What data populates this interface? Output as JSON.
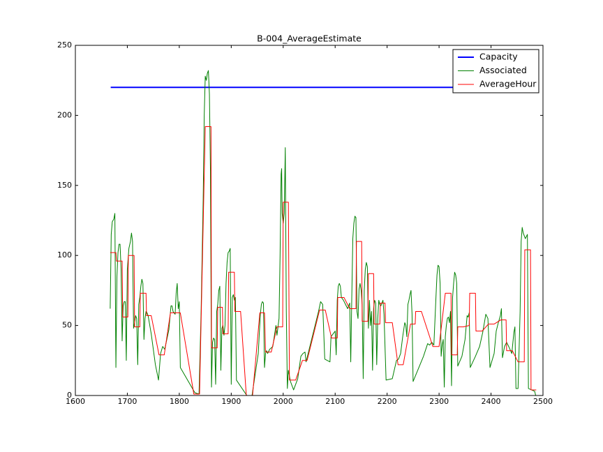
{
  "chart_data": {
    "type": "line",
    "title": "B-004_AverageEstimate",
    "xlim": [
      1600,
      2500
    ],
    "xticks": [
      1600,
      1700,
      1800,
      1900,
      2000,
      2100,
      2200,
      2300,
      2400,
      2500
    ],
    "ylim": [
      0,
      250
    ],
    "yticks": [
      0,
      50,
      100,
      150,
      200,
      250
    ],
    "grid": false,
    "legend": "upper right",
    "series": [
      {
        "name": "Capacity",
        "color": "#0000ff",
        "x": [
          1668,
          2487
        ],
        "values": [
          220,
          220
        ]
      },
      {
        "name": "Associated",
        "color": "#008000",
        "x": [
          1667,
          1669,
          1671,
          1674,
          1676,
          1678,
          1680,
          1682,
          1684,
          1686,
          1688,
          1690,
          1692,
          1694,
          1696,
          1698,
          1700,
          1703,
          1706,
          1708,
          1710,
          1712,
          1714,
          1716,
          1718,
          1720,
          1722,
          1724,
          1726,
          1728,
          1730,
          1732,
          1734,
          1736,
          1738,
          1740,
          1746,
          1754,
          1760,
          1764,
          1768,
          1772,
          1780,
          1784,
          1786,
          1788,
          1792,
          1794,
          1796,
          1798,
          1800,
          1802,
          1830,
          1838,
          1842,
          1846,
          1848,
          1850,
          1852,
          1854,
          1856,
          1858,
          1860,
          1862,
          1864,
          1866,
          1868,
          1870,
          1872,
          1874,
          1876,
          1878,
          1880,
          1882,
          1884,
          1886,
          1888,
          1890,
          1892,
          1894,
          1896,
          1898,
          1900,
          1902,
          1904,
          1906,
          1908,
          1910,
          1930,
          1940,
          1952,
          1956,
          1958,
          1960,
          1962,
          1964,
          1966,
          1968,
          1970,
          1974,
          1980,
          1986,
          1988,
          1992,
          1994,
          1996,
          1997,
          1998,
          2000,
          2002,
          2004,
          2006,
          2008,
          2010,
          2014,
          2020,
          2028,
          2034,
          2038,
          2042,
          2044,
          2068,
          2072,
          2076,
          2080,
          2090,
          2092,
          2096,
          2100,
          2102,
          2104,
          2106,
          2108,
          2110,
          2112,
          2116,
          2120,
          2124,
          2128,
          2130,
          2132,
          2134,
          2136,
          2138,
          2140,
          2142,
          2144,
          2146,
          2148,
          2150,
          2152,
          2154,
          2156,
          2158,
          2160,
          2162,
          2164,
          2166,
          2168,
          2170,
          2172,
          2174,
          2176,
          2178,
          2180,
          2182,
          2184,
          2186,
          2188,
          2192,
          2194,
          2198,
          2210,
          2218,
          2222,
          2226,
          2230,
          2234,
          2236,
          2238,
          2240,
          2242,
          2244,
          2246,
          2248,
          2250,
          2270,
          2278,
          2282,
          2286,
          2290,
          2294,
          2296,
          2298,
          2300,
          2302,
          2304,
          2306,
          2308,
          2310,
          2312,
          2314,
          2316,
          2318,
          2320,
          2322,
          2324,
          2326,
          2328,
          2330,
          2332,
          2334,
          2336,
          2344,
          2350,
          2354,
          2356,
          2358,
          2360,
          2370,
          2378,
          2384,
          2390,
          2394,
          2398,
          2406,
          2410,
          2414,
          2418,
          2420,
          2422,
          2426,
          2430,
          2434,
          2440,
          2444,
          2446,
          2448,
          2452,
          2456,
          2458,
          2460,
          2462,
          2466,
          2470,
          2472,
          2478,
          2484,
          2486
        ],
        "values": [
          62,
          115,
          124,
          126,
          130,
          20,
          85,
          102,
          108,
          108,
          90,
          39,
          64,
          67,
          67,
          25,
          90,
          105,
          110,
          116,
          110,
          48,
          52,
          57,
          55,
          22,
          65,
          70,
          78,
          83,
          80,
          40,
          55,
          60,
          59,
          57,
          44,
          22,
          11,
          30,
          35,
          33,
          47,
          64,
          64,
          60,
          58,
          73,
          80,
          62,
          67,
          20,
          2,
          1,
          60,
          140,
          200,
          228,
          225,
          230,
          232,
          215,
          160,
          6,
          38,
          41,
          40,
          8,
          60,
          65,
          75,
          78,
          18,
          48,
          50,
          43,
          50,
          80,
          95,
          102,
          103,
          105,
          8,
          70,
          72,
          68,
          70,
          11,
          0,
          0,
          30,
          58,
          65,
          67,
          66,
          20,
          30,
          32,
          30,
          33,
          35,
          50,
          43,
          55,
          100,
          158,
          162,
          130,
          123,
          130,
          177,
          60,
          5,
          18,
          10,
          4,
          12,
          28,
          30,
          31,
          24,
          60,
          67,
          65,
          26,
          24,
          42,
          44,
          46,
          29,
          68,
          78,
          80,
          78,
          70,
          68,
          65,
          62,
          66,
          24,
          70,
          112,
          123,
          128,
          127,
          60,
          55,
          76,
          80,
          75,
          65,
          12,
          75,
          90,
          95,
          92,
          48,
          68,
          50,
          60,
          18,
          62,
          68,
          66,
          22,
          55,
          68,
          65,
          64,
          68,
          58,
          11,
          12,
          25,
          26,
          30,
          42,
          52,
          50,
          42,
          65,
          68,
          72,
          75,
          58,
          10,
          28,
          37,
          36,
          38,
          36,
          70,
          86,
          93,
          92,
          80,
          28,
          36,
          40,
          6,
          42,
          50,
          55,
          56,
          52,
          60,
          7,
          70,
          80,
          88,
          86,
          80,
          21,
          28,
          40,
          57,
          56,
          59,
          20,
          28,
          35,
          45,
          58,
          55,
          20,
          30,
          46,
          52,
          57,
          62,
          27,
          35,
          38,
          35,
          30,
          45,
          49,
          5,
          5,
          60,
          110,
          120,
          116,
          112,
          115,
          5,
          4,
          3,
          0
        ]
      },
      {
        "name": "AverageHour",
        "color": "#ff0000",
        "x": [
          1667,
          1678,
          1679,
          1690,
          1691,
          1701,
          1702,
          1713,
          1714,
          1724,
          1725,
          1736,
          1737,
          1746,
          1761,
          1771,
          1783,
          1802,
          1828,
          1839,
          1850,
          1861,
          1862,
          1873,
          1874,
          1883,
          1884,
          1894,
          1895,
          1906,
          1907,
          1918,
          1929,
          1941,
          1955,
          1964,
          1966,
          1977,
          1988,
          1999,
          2000,
          2010,
          2012,
          2024,
          2037,
          2046,
          2070,
          2081,
          2093,
          2104,
          2105,
          2117,
          2128,
          2140,
          2141,
          2151,
          2152,
          2163,
          2164,
          2174,
          2175,
          2186,
          2187,
          2196,
          2197,
          2210,
          2221,
          2231,
          2245,
          2254,
          2255,
          2266,
          2288,
          2300,
          2312,
          2323,
          2324,
          2335,
          2336,
          2347,
          2358,
          2359,
          2370,
          2371,
          2383,
          2395,
          2406,
          2419,
          2429,
          2430,
          2441,
          2452,
          2464,
          2465,
          2476,
          2477,
          2487
        ],
        "values": [
          102,
          102,
          96,
          96,
          56,
          56,
          100,
          100,
          49,
          49,
          73,
          73,
          57,
          57,
          29,
          29,
          59,
          59,
          1,
          1,
          192,
          192,
          34,
          34,
          63,
          63,
          44,
          44,
          88,
          88,
          60,
          60,
          0,
          0,
          59,
          59,
          31,
          31,
          49,
          49,
          138,
          138,
          11,
          11,
          25,
          25,
          61,
          61,
          41,
          41,
          70,
          70,
          62,
          62,
          110,
          110,
          53,
          53,
          87,
          87,
          51,
          51,
          66,
          66,
          52,
          52,
          22,
          22,
          51,
          51,
          60,
          60,
          35,
          35,
          73,
          73,
          29,
          29,
          49,
          49,
          50,
          73,
          73,
          46,
          46,
          51,
          51,
          54,
          54,
          32,
          32,
          24,
          24,
          104,
          104,
          4,
          4
        ]
      }
    ]
  }
}
